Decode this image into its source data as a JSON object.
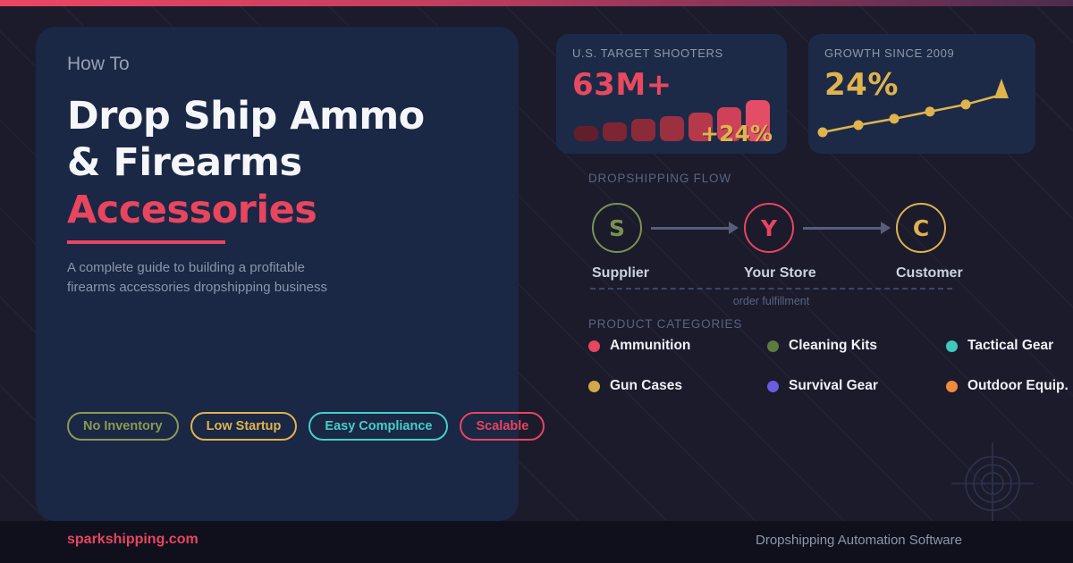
{
  "hero": {
    "kicker": "How To",
    "title_line1": "Drop Ship Ammo",
    "title_line2": "& Firearms",
    "title_accent": "Accessories",
    "subtitle": "A complete guide to building a profitable firearms accessories dropshipping business",
    "badges": [
      {
        "label": "No Inventory",
        "color": "#8a9a52"
      },
      {
        "label": "Low Startup",
        "color": "#dfb34e"
      },
      {
        "label": "Easy Compliance",
        "color": "#45cfc4"
      },
      {
        "label": "Scalable",
        "color": "#e8455e"
      }
    ]
  },
  "stats": [
    {
      "label": "U.S. TARGET SHOOTERS",
      "value": "63M+",
      "annotation": "+24%"
    },
    {
      "label": "GROWTH SINCE 2009",
      "value": "24%"
    }
  ],
  "flow": {
    "heading": "DROPSHIPPING FLOW",
    "nodes": [
      {
        "initial": "S",
        "label": "Supplier",
        "color": "#7b9150"
      },
      {
        "initial": "Y",
        "label": "Your Store",
        "color": "#e8455e"
      },
      {
        "initial": "C",
        "label": "Customer",
        "color": "#dfb054"
      }
    ],
    "return_caption": "order fulfillment"
  },
  "categories": {
    "heading": "PRODUCT CATEGORIES",
    "items": [
      {
        "label": "Ammunition",
        "color": "#e8455e"
      },
      {
        "label": "Cleaning Kits",
        "color": "#5d7a3f"
      },
      {
        "label": "Tactical Gear",
        "color": "#3fc8bc"
      },
      {
        "label": "Gun Cases",
        "color": "#d2a84b"
      },
      {
        "label": "Survival Gear",
        "color": "#6a5be0"
      },
      {
        "label": "Outdoor Equip.",
        "color": "#ef8b3a"
      }
    ]
  },
  "footer": {
    "brand": "sparkshipping.com",
    "tagline": "Dropshipping Automation Software"
  },
  "theme": {
    "background": "#1b1b2c",
    "card": "#1a2745",
    "accent_pink": "#e8455e",
    "accent_gold": "#dfb34e",
    "topbar_gradient": [
      "#ec4663",
      "#4c2c4e"
    ],
    "crosshair_icon_color": "#3c4366"
  },
  "chart_data": [
    {
      "type": "bar",
      "title": "U.S. TARGET SHOOTERS",
      "headline_value": "63M+",
      "annotation": "+24%",
      "values": [
        37,
        46,
        54,
        61,
        70,
        83,
        100
      ],
      "value_unit": "relative height, % of max bar",
      "colors": [
        "#621f2b",
        "#7d2533",
        "#8d2a3a",
        "#9b3040",
        "#b5394b",
        "#cf4159",
        "#e44d66"
      ],
      "axes": "none (decorative sparkbar, ascending trend)"
    },
    {
      "type": "line",
      "title": "GROWTH SINCE 2009",
      "headline_value": "24%",
      "values": [
        0,
        19,
        36,
        55,
        74,
        100
      ],
      "value_unit": "relative growth, % of range (ascending trend, arrow at end)",
      "color": "#dfb34e",
      "markers": true,
      "end_arrow": "up",
      "axes": "none (decorative sparkline)"
    }
  ]
}
